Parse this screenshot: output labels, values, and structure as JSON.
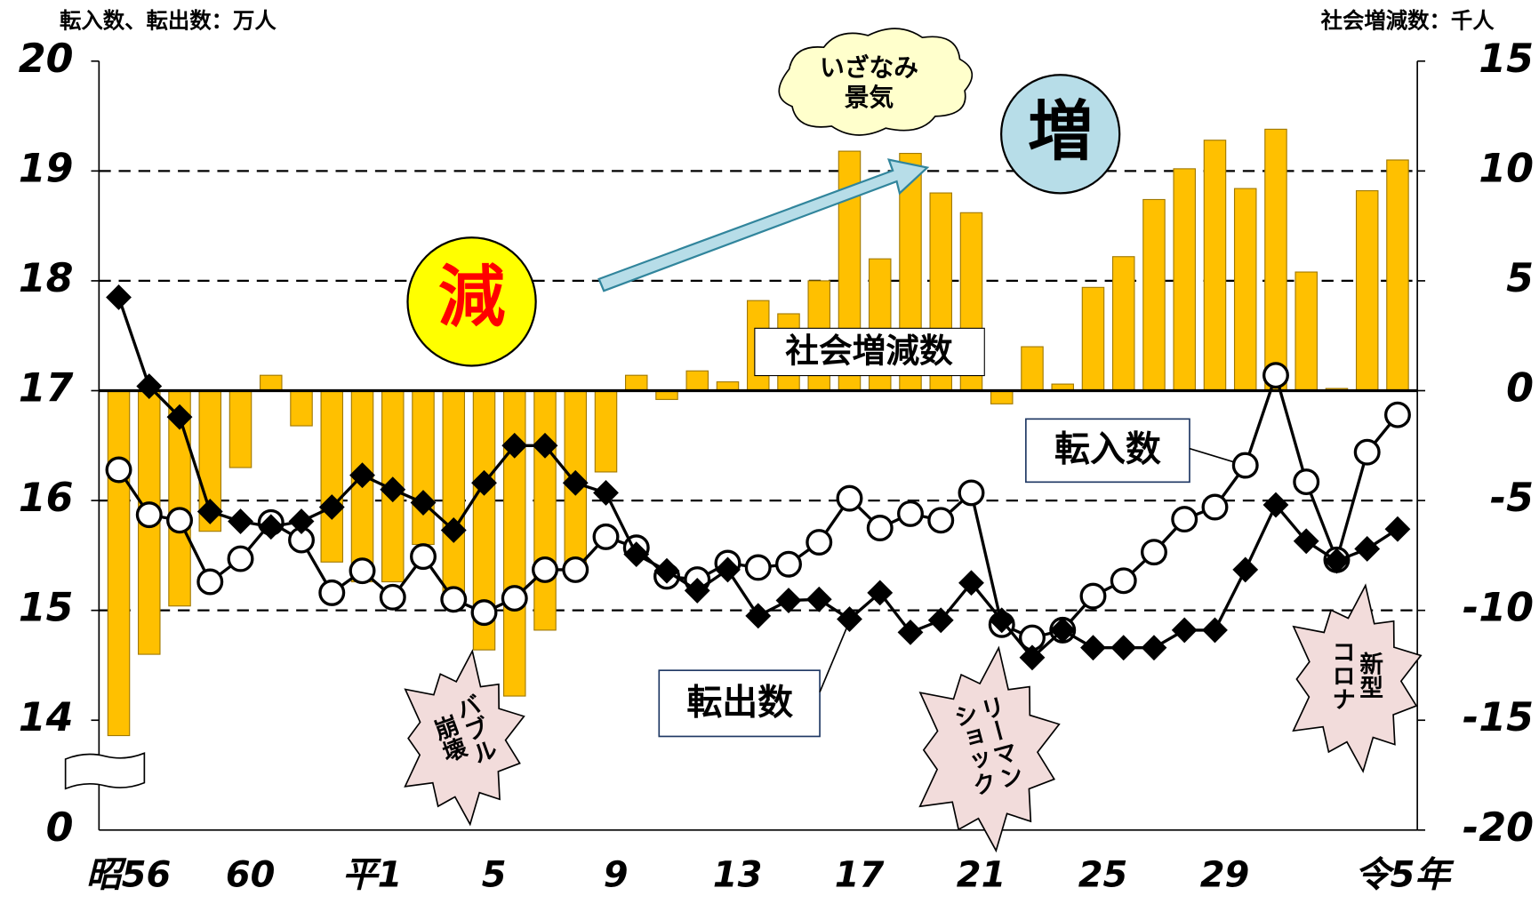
{
  "chart_data": {
    "type": "bar-line",
    "left_axis_label": "転入数、転出数：万人",
    "right_axis_label": "社会増減数：千人",
    "categories": [
      "昭56",
      null,
      null,
      null,
      "60",
      null,
      null,
      null,
      "平1",
      null,
      null,
      null,
      "5",
      null,
      null,
      null,
      "9",
      null,
      null,
      null,
      "13",
      null,
      null,
      null,
      "17",
      null,
      null,
      null,
      "21",
      null,
      null,
      null,
      "25",
      null,
      null,
      null,
      "29",
      null,
      null,
      null,
      null,
      null,
      "令5年"
    ],
    "ylim": [
      13,
      20
    ],
    "yticks": [
      14,
      15,
      16,
      17,
      18,
      19,
      20
    ],
    "y_break_label": "0",
    "y2lim": [
      -20,
      15
    ],
    "y2ticks": [
      -20,
      -15,
      -10,
      -5,
      0,
      5,
      10,
      15
    ],
    "grid": true,
    "series": [
      {
        "name": "社会増減数",
        "type": "bar",
        "axis": "y2",
        "color": "#ffc000",
        "values": [
          -15.7,
          -12.0,
          -9.8,
          -6.4,
          -3.5,
          0.7,
          -1.6,
          -7.8,
          -8.7,
          -8.7,
          -7.0,
          -9.5,
          -11.8,
          -13.9,
          -10.9,
          -8.2,
          -3.7,
          0.7,
          -0.4,
          0.9,
          0.4,
          4.1,
          3.5,
          5.0,
          10.9,
          6.0,
          10.8,
          9.0,
          8.1,
          -0.6,
          2.0,
          0.3,
          4.7,
          6.1,
          8.7,
          10.1,
          11.4,
          9.2,
          11.9,
          5.4,
          0.1,
          9.1,
          10.5
        ]
      },
      {
        "name": "転入数",
        "type": "line",
        "marker": "circle",
        "color": "#000000",
        "values": [
          16.28,
          15.87,
          15.82,
          15.26,
          15.47,
          15.8,
          15.64,
          15.16,
          15.36,
          15.12,
          15.49,
          15.1,
          14.98,
          15.11,
          15.37,
          15.37,
          15.67,
          15.57,
          15.31,
          15.28,
          15.43,
          15.39,
          15.42,
          15.62,
          16.02,
          15.75,
          15.88,
          15.82,
          16.07,
          14.87,
          14.75,
          14.82,
          15.13,
          15.27,
          15.53,
          15.83,
          15.94,
          16.32,
          17.14,
          16.17,
          15.46,
          16.44,
          16.78
        ]
      },
      {
        "name": "転出数",
        "type": "line",
        "marker": "diamond",
        "color": "#000000",
        "values": [
          17.85,
          17.04,
          16.76,
          15.9,
          15.81,
          15.76,
          15.81,
          15.94,
          16.23,
          16.1,
          15.98,
          15.73,
          16.16,
          16.5,
          16.5,
          16.16,
          16.07,
          15.51,
          15.36,
          15.18,
          15.37,
          14.95,
          15.09,
          15.1,
          14.92,
          15.16,
          14.8,
          14.91,
          15.25,
          14.91,
          14.57,
          14.82,
          14.66,
          14.66,
          14.66,
          14.82,
          14.82,
          15.37,
          15.96,
          15.63,
          15.45,
          15.56,
          15.74
        ]
      }
    ],
    "annotations": {
      "decrease": "減",
      "increase": "増",
      "boom": [
        "いざなみ",
        "景気"
      ],
      "bubble": [
        "バブル",
        "崩壊"
      ],
      "lehman": [
        "リーマン",
        "ショック"
      ],
      "corona": [
        "新型",
        "コロナ"
      ]
    }
  }
}
